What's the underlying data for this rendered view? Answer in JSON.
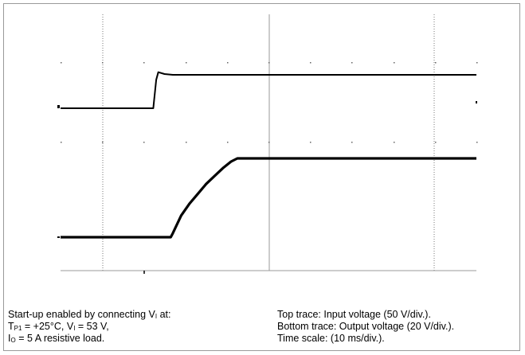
{
  "chart_data": {
    "type": "line",
    "title": "",
    "xlabel": "",
    "ylabel": "",
    "x_unit": "ms",
    "x_divisions": 10,
    "xlim": [
      0,
      100
    ],
    "grid": "dotted graticule",
    "series": [
      {
        "points": [
          [
            0,
            1.6
          ],
          [
            22.3,
            1.6
          ],
          [
            23.0,
            2.35
          ],
          [
            23.5,
            2.55
          ],
          [
            25.0,
            2.5
          ],
          [
            27.0,
            2.48
          ],
          [
            100,
            2.48
          ]
        ]
      },
      {
        "points": [
          [
            0,
            0
          ],
          [
            26.5,
            0
          ],
          [
            27.0,
            0.1
          ],
          [
            29.0,
            0.55
          ],
          [
            31.0,
            0.85
          ],
          [
            33.0,
            1.1
          ],
          [
            35.0,
            1.35
          ],
          [
            37.0,
            1.55
          ],
          [
            39.0,
            1.75
          ],
          [
            41.0,
            1.92
          ],
          [
            42.5,
            2.0
          ],
          [
            100,
            2.0
          ]
        ]
      }
    ],
    "annotations": {
      "caption_left": [
        {
          "text": "Start-up enabled by connecting V",
          "sub": "I",
          "suffix": " at:"
        },
        {
          "pre": "T",
          "pre_sub": "P1",
          "text": " = +25°C, V",
          "sub": "I",
          "suffix": " = 53 V,"
        },
        {
          "pre": "I",
          "pre_sub": "O",
          "text": " = 5 A resistive load.",
          "sub": "",
          "suffix": ""
        }
      ],
      "caption_right": [
        "Top trace: Input voltage (50 V/div.).",
        "Bottom trace: Output voltage (20 V/div.).",
        "Time scale: (10 ms/div.)."
      ]
    }
  }
}
